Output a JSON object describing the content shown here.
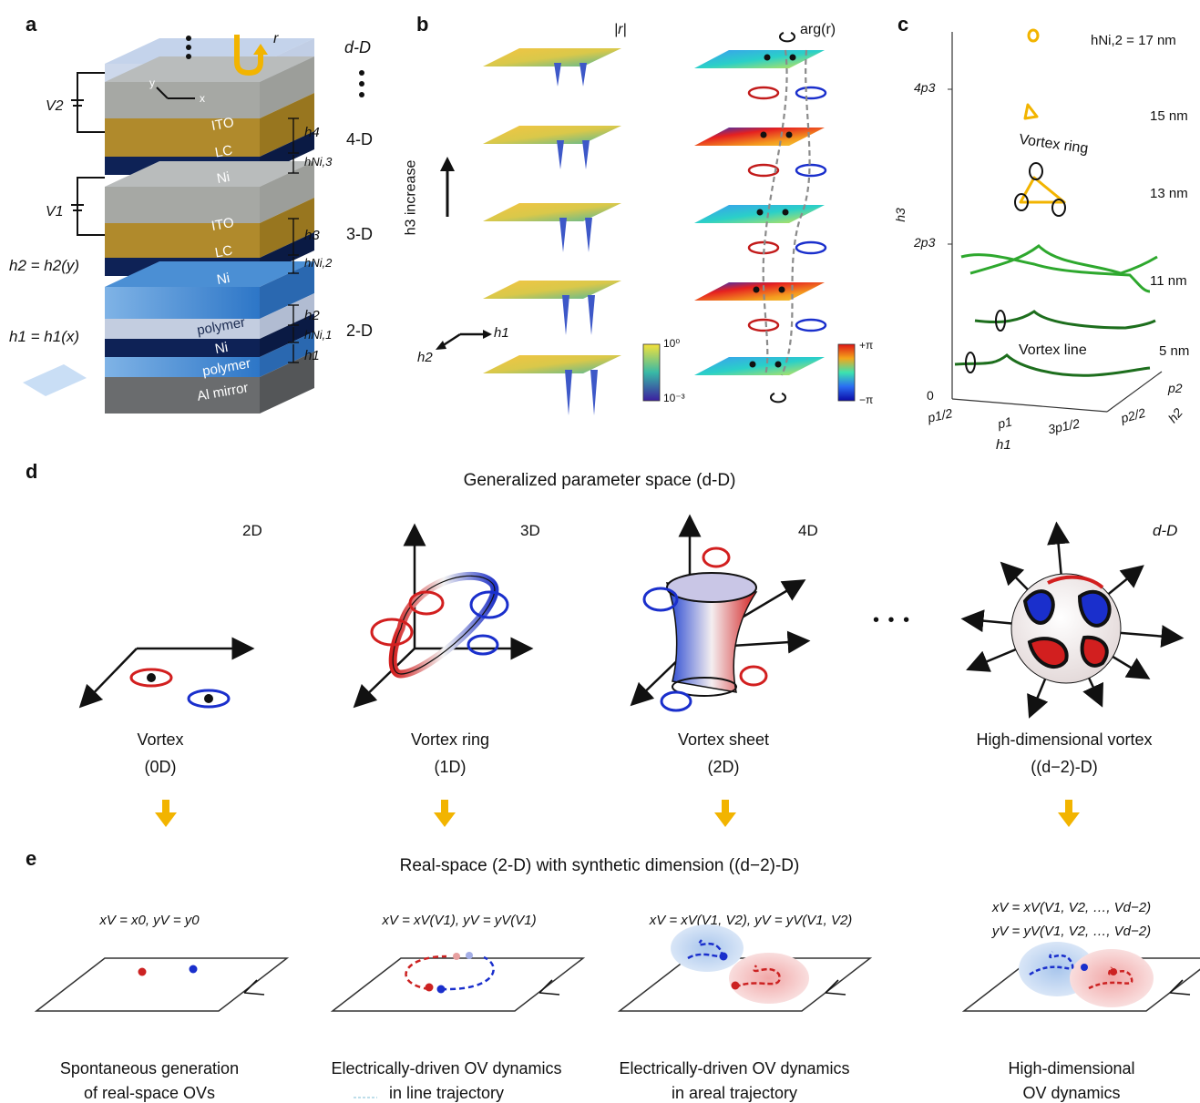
{
  "panel_labels": {
    "a": "a",
    "b": "b",
    "c": "c",
    "d": "d",
    "e": "e"
  },
  "panel_a": {
    "layers": [
      "ITO",
      "LC",
      "Ni",
      "ITO",
      "LC",
      "Ni",
      "polymer",
      "Ni",
      "polymer",
      "Al mirror"
    ],
    "voltages": [
      "V2",
      "V1"
    ],
    "heights": [
      "h4",
      "hNi,3",
      "h3",
      "hNi,2",
      "h2",
      "hNi,1",
      "h1"
    ],
    "dims": [
      "d-D",
      "4-D",
      "3-D",
      "2-D"
    ],
    "axis_x": "x",
    "axis_y": "y",
    "reflect": "r",
    "eq_h2": "h2 = h2(y)",
    "eq_h1": "h1 = h1(x)"
  },
  "panel_b": {
    "amp_label": "|r|",
    "phase_label": "arg(r)",
    "increase_label": "h3 increase",
    "axis_h1": "h1",
    "axis_h2": "h2",
    "amp_cbar": {
      "max": "10⁰",
      "min": "10⁻³"
    },
    "phase_cbar": {
      "max": "+π",
      "min": "−π"
    }
  },
  "panel_c": {
    "y_axis": "h3",
    "y_ticks": [
      "0",
      "2p3",
      "4p3"
    ],
    "x_axis": "h1",
    "x_ticks": [
      "p1/2",
      "p1",
      "3p1/2"
    ],
    "z_axis": "h2",
    "z_ticks": [
      "p2/2",
      "p2"
    ],
    "thickness_labels": [
      "hNi,2 = 17 nm",
      "15 nm",
      "13 nm",
      "11 nm",
      "5 nm"
    ],
    "annotations": [
      "Vortex ring",
      "Vortex line"
    ]
  },
  "panel_d": {
    "title": "Generalized parameter space (d-D)",
    "columns": [
      {
        "dim": "2D",
        "name": "Vortex",
        "sub": "(0D)"
      },
      {
        "dim": "3D",
        "name": "Vortex ring",
        "sub": "(1D)"
      },
      {
        "dim": "4D",
        "name": "Vortex sheet",
        "sub": "(2D)"
      },
      {
        "dim": "d-D",
        "name": "High-dimensional vortex",
        "sub": "((d−2)-D)"
      }
    ],
    "ellipsis": "• • •"
  },
  "panel_e": {
    "title": "Real-space (2-D) with synthetic dimension ((d−2)-D)",
    "equations": [
      "xV = x0, yV = y0",
      "xV = xV(V1), yV = yV(V1)",
      "xV = xV(V1, V2), yV = yV(V1, V2)",
      "xV = xV(V1, V2, …, Vd−2)",
      "yV = yV(V1, V2, …, Vd−2)"
    ],
    "captions": [
      [
        "Spontaneous generation",
        "of real-space OVs"
      ],
      [
        "Electrically-driven OV dynamics",
        "in line trajectory"
      ],
      [
        "Electrically-driven OV dynamics",
        "in areal trajectory"
      ],
      [
        "High-dimensional",
        "OV dynamics"
      ]
    ]
  },
  "colors": {
    "red": "#d21f1f",
    "blue": "#1a2fcc",
    "gold": "#f2b400",
    "green": "#2ea82e",
    "darkgreen": "#1d6e1d",
    "navy": "#0b1f4f"
  }
}
